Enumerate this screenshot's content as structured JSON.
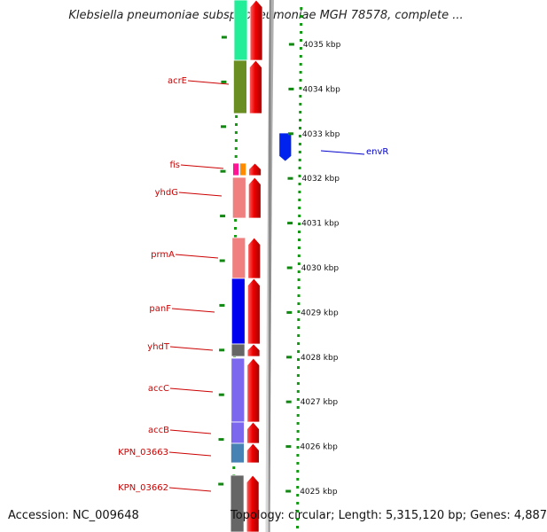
{
  "title": "Klebsiella pneumoniae subsp. pneumoniae MGH 78578, complete ...",
  "footer": {
    "accession": "Accession: NC_009648",
    "topology": "Topology: circular; Length: 5,315,120 bp; Genes: 4,887"
  },
  "scale_ticks": [
    {
      "label": "4035 kbp",
      "kbp": 4035
    },
    {
      "label": "4034 kbp",
      "kbp": 4034
    },
    {
      "label": "4033 kbp",
      "kbp": 4033
    },
    {
      "label": "4032 kbp",
      "kbp": 4032
    },
    {
      "label": "4031 kbp",
      "kbp": 4031
    },
    {
      "label": "4030 kbp",
      "kbp": 4030
    },
    {
      "label": "4029 kbp",
      "kbp": 4029
    },
    {
      "label": "4028 kbp",
      "kbp": 4028
    },
    {
      "label": "4027 kbp",
      "kbp": 4027
    },
    {
      "label": "4026 kbp",
      "kbp": 4026
    },
    {
      "label": "4025 kbp",
      "kbp": 4025
    }
  ],
  "gene_labels": [
    {
      "name": "acrE",
      "color": "#cc0000"
    },
    {
      "name": "fis",
      "color": "#cc0000"
    },
    {
      "name": "yhdG",
      "color": "#cc0000"
    },
    {
      "name": "prmA",
      "color": "#cc0000"
    },
    {
      "name": "panF",
      "color": "#cc0000"
    },
    {
      "name": "yhdT",
      "color": "#cc0000"
    },
    {
      "name": "accC",
      "color": "#cc0000"
    },
    {
      "name": "accB",
      "color": "#cc0000"
    },
    {
      "name": "KPN_03663",
      "color": "#cc0000"
    },
    {
      "name": "KPN_03662",
      "color": "#cc0000"
    },
    {
      "name": "envR",
      "color": "#0000cc"
    }
  ],
  "colors": {
    "gene_red": "#ee0000",
    "backbone": "#888888",
    "ruler_green": "#118811",
    "dotted_green": "#119911"
  }
}
